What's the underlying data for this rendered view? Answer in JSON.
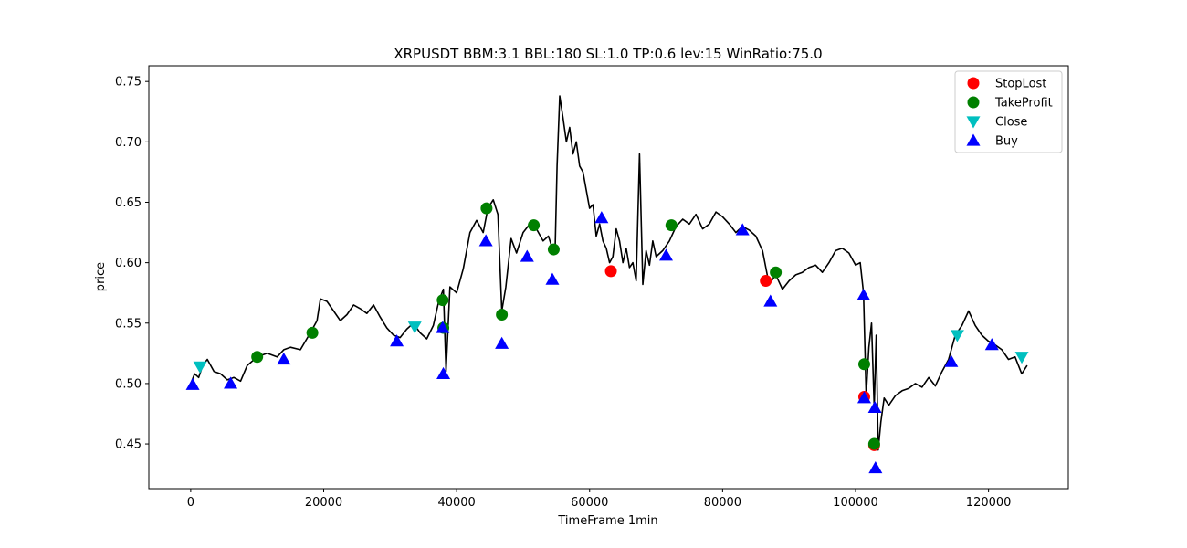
{
  "chart_data": {
    "type": "line",
    "title": "XRPUSDT BBM:3.1 BBL:180 SL:1.0 TP:0.6 lev:15 WinRatio:75.0",
    "xlabel": "TimeFrame 1min",
    "ylabel": "price",
    "xlim": [
      -6300,
      132000
    ],
    "ylim": [
      0.413,
      0.763
    ],
    "x_ticks": [
      0,
      20000,
      40000,
      60000,
      80000,
      100000,
      120000
    ],
    "x_tick_labels": [
      "0",
      "20000",
      "40000",
      "60000",
      "80000",
      "100000",
      "120000"
    ],
    "y_ticks": [
      0.45,
      0.5,
      0.55,
      0.6,
      0.65,
      0.7,
      0.75
    ],
    "y_tick_labels": [
      "0.45",
      "0.50",
      "0.55",
      "0.60",
      "0.65",
      "0.70",
      "0.75"
    ],
    "grid": false,
    "legend_position": "upper-right",
    "colors": {
      "price": "#000000",
      "StopLost": "#ff0000",
      "TakeProfit": "#008000",
      "Close": "#00bfbf",
      "Buy": "#0000ff"
    },
    "price_line": {
      "name": "price",
      "x": [
        0,
        600,
        1200,
        1800,
        2500,
        3500,
        4500,
        5500,
        6500,
        7500,
        8500,
        10000,
        11500,
        13000,
        14000,
        15000,
        16500,
        18000,
        19000,
        19500,
        20500,
        21500,
        22500,
        23500,
        24500,
        25500,
        26500,
        27500,
        28500,
        29500,
        30500,
        31500,
        32500,
        33500,
        34500,
        35500,
        36500,
        37300,
        38000,
        38400,
        39000,
        40000,
        41000,
        42000,
        43000,
        44000,
        44700,
        45500,
        46200,
        46800,
        47400,
        48200,
        49000,
        50000,
        51000,
        52000,
        53000,
        53800,
        54500,
        54800,
        55100,
        55500,
        56000,
        56500,
        57000,
        57500,
        58000,
        58500,
        59000,
        59500,
        60000,
        60500,
        61000,
        61500,
        62000,
        62500,
        63000,
        63500,
        64000,
        64500,
        65000,
        65500,
        66000,
        66500,
        67000,
        67500,
        68000,
        68500,
        69000,
        69500,
        70000,
        71000,
        72000,
        73000,
        74000,
        75000,
        76000,
        77000,
        78000,
        79000,
        80000,
        81000,
        82000,
        83000,
        84000,
        85000,
        86000,
        87000,
        88000,
        89000,
        90000,
        91000,
        92000,
        93000,
        94000,
        95000,
        96000,
        97000,
        98000,
        99000,
        100000,
        100700,
        101200,
        101600,
        102000,
        102400,
        102800,
        103100,
        103400,
        103800,
        104300,
        105000,
        106000,
        107000,
        108000,
        109000,
        110000,
        111000,
        112000,
        113000,
        114000,
        115000,
        116000,
        117000,
        118000,
        119000,
        120000,
        121000,
        122000,
        123000,
        124000,
        125000,
        125800
      ],
      "y": [
        0.5,
        0.508,
        0.505,
        0.515,
        0.52,
        0.51,
        0.508,
        0.503,
        0.505,
        0.502,
        0.515,
        0.522,
        0.525,
        0.522,
        0.528,
        0.53,
        0.528,
        0.542,
        0.552,
        0.57,
        0.568,
        0.56,
        0.552,
        0.557,
        0.565,
        0.562,
        0.558,
        0.565,
        0.555,
        0.546,
        0.54,
        0.538,
        0.545,
        0.55,
        0.542,
        0.537,
        0.548,
        0.568,
        0.578,
        0.51,
        0.58,
        0.575,
        0.595,
        0.625,
        0.635,
        0.625,
        0.645,
        0.652,
        0.64,
        0.56,
        0.58,
        0.62,
        0.608,
        0.625,
        0.632,
        0.628,
        0.618,
        0.622,
        0.61,
        0.608,
        0.68,
        0.738,
        0.72,
        0.7,
        0.712,
        0.69,
        0.7,
        0.68,
        0.675,
        0.66,
        0.645,
        0.648,
        0.622,
        0.632,
        0.618,
        0.612,
        0.6,
        0.605,
        0.628,
        0.618,
        0.6,
        0.612,
        0.596,
        0.6,
        0.585,
        0.69,
        0.582,
        0.61,
        0.598,
        0.618,
        0.605,
        0.61,
        0.618,
        0.63,
        0.636,
        0.632,
        0.64,
        0.628,
        0.632,
        0.642,
        0.638,
        0.632,
        0.625,
        0.63,
        0.627,
        0.622,
        0.61,
        0.582,
        0.59,
        0.578,
        0.585,
        0.59,
        0.592,
        0.596,
        0.598,
        0.592,
        0.6,
        0.61,
        0.612,
        0.608,
        0.598,
        0.6,
        0.575,
        0.49,
        0.53,
        0.55,
        0.48,
        0.54,
        0.445,
        0.468,
        0.488,
        0.482,
        0.49,
        0.494,
        0.496,
        0.5,
        0.497,
        0.505,
        0.498,
        0.51,
        0.52,
        0.54,
        0.548,
        0.56,
        0.548,
        0.54,
        0.535,
        0.532,
        0.528,
        0.52,
        0.522,
        0.508,
        0.515
      ]
    },
    "series": [
      {
        "name": "StopLost",
        "marker": "circle",
        "x": [
          63200,
          86500,
          101300,
          102800
        ],
        "y": [
          0.593,
          0.585,
          0.489,
          0.449
        ]
      },
      {
        "name": "TakeProfit",
        "marker": "circle",
        "x": [
          10000,
          18300,
          37900,
          38000,
          44500,
          46800,
          51600,
          54600,
          72300,
          88000,
          101300,
          102800
        ],
        "y": [
          0.522,
          0.542,
          0.569,
          0.546,
          0.645,
          0.557,
          0.631,
          0.611,
          0.631,
          0.592,
          0.516,
          0.45
        ]
      },
      {
        "name": "Close",
        "marker": "triangle-down",
        "x": [
          1400,
          33700,
          115300,
          125000
        ],
        "y": [
          0.514,
          0.547,
          0.54,
          0.522
        ]
      },
      {
        "name": "Buy",
        "marker": "triangle-up",
        "x": [
          300,
          6000,
          14000,
          31000,
          37900,
          38000,
          44400,
          46800,
          50600,
          54400,
          61800,
          71500,
          83000,
          87200,
          101200,
          101300,
          102900,
          103000,
          114400,
          120500
        ],
        "y": [
          0.499,
          0.5,
          0.52,
          0.535,
          0.546,
          0.508,
          0.618,
          0.533,
          0.605,
          0.586,
          0.637,
          0.606,
          0.627,
          0.568,
          0.573,
          0.488,
          0.48,
          0.43,
          0.518,
          0.532
        ]
      }
    ]
  }
}
